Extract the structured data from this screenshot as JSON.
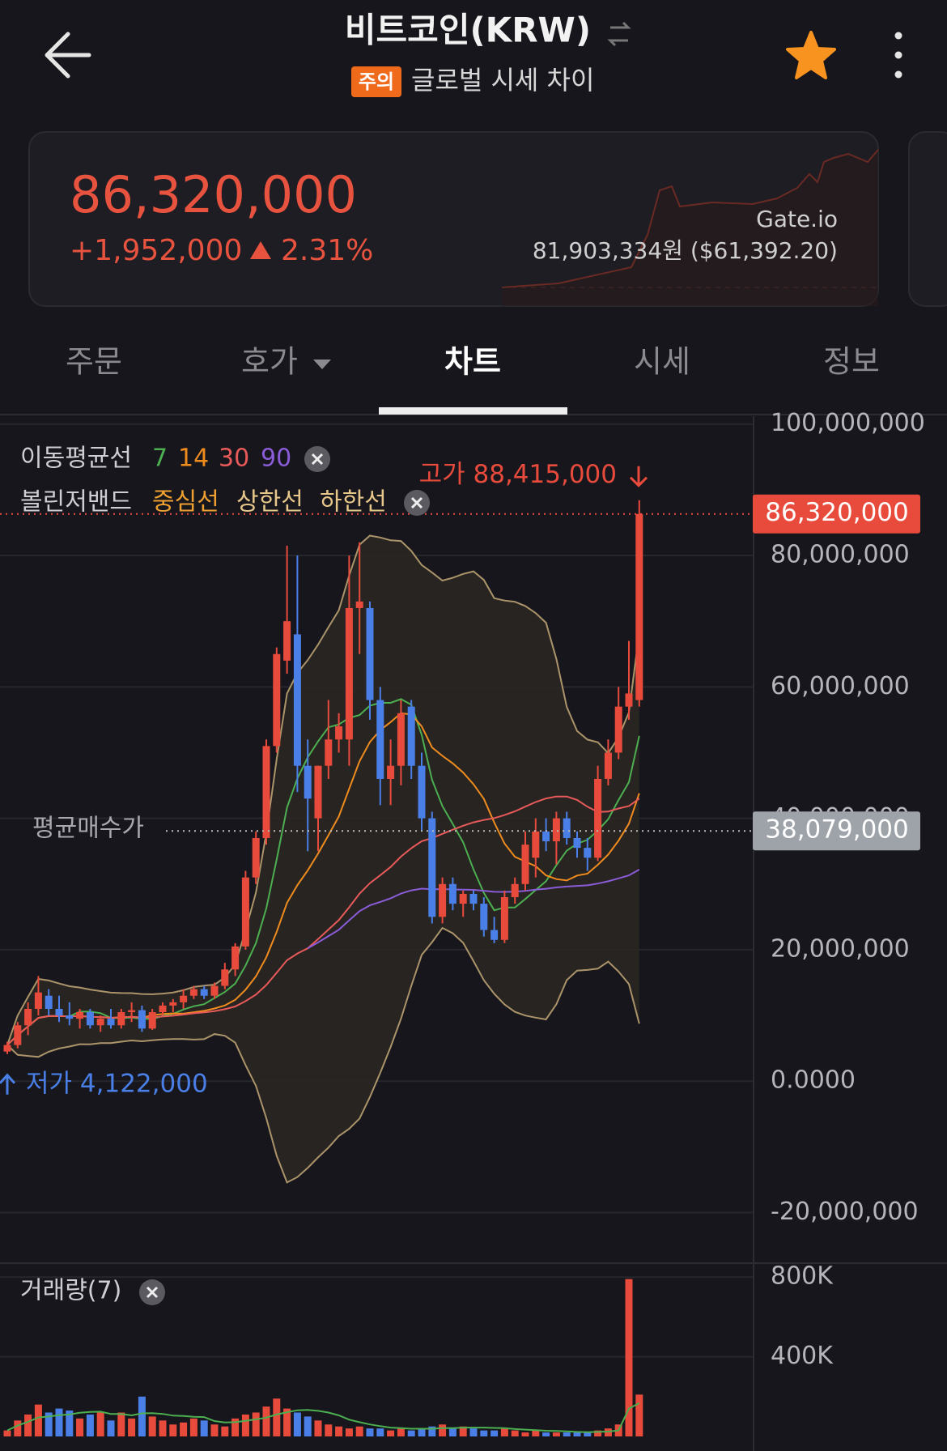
{
  "header": {
    "title": "비트코인(KRW)",
    "badge": "주의",
    "subtitle": "글로벌 시세 차이"
  },
  "price_card": {
    "price": "86,320,000",
    "change": "+1,952,000",
    "change_rate": "2.31%",
    "exchange": "Gate.io",
    "global_price": "81,903,334원 ($61,392.20)"
  },
  "tabs": [
    "주문",
    "호가",
    "차트",
    "시세",
    "정보"
  ],
  "chart_data": {
    "type": "candlestick",
    "up_color": "#e84b3c",
    "down_color": "#4a7fe8",
    "ylim": [
      -27700000,
      101200000
    ],
    "yticks": [
      {
        "value": -20000000,
        "label": "-20,000,000"
      },
      {
        "value": 0,
        "label": "0.0000"
      },
      {
        "value": 20000000,
        "label": "20,000,000"
      },
      {
        "value": 40000000,
        "label": "40,000,000"
      },
      {
        "value": 60000000,
        "label": "60,000,000"
      },
      {
        "value": 80000000,
        "label": "80,000,000"
      },
      {
        "value": 100000000,
        "label": "100,000,000"
      }
    ],
    "open": [
      4500000,
      5500000,
      8500000,
      11000000,
      13000000,
      11000000,
      10000000,
      9500000,
      10500000,
      8500000,
      9500000,
      8500000,
      10500000,
      10800000,
      8000000,
      10500000,
      11500000,
      12000000,
      13000000,
      14000000,
      13000000,
      14500000,
      17000000,
      20500000,
      31000000,
      37000000,
      51000000,
      64000000,
      68000000,
      48000000,
      40000000,
      48000000,
      52000000,
      52000000,
      72000000,
      72000000,
      58000000,
      46000000,
      48000000,
      57000000,
      48000000,
      40000000,
      25000000,
      30000000,
      27000000,
      28500000,
      27000000,
      23000000,
      21500000,
      28000000,
      30000000,
      34000000,
      38000000,
      36500000,
      40000000,
      37000000,
      35500000,
      34000000,
      46000000,
      50000000,
      57000000,
      58000000
    ],
    "high": [
      6000000,
      9000000,
      12000000,
      16000000,
      14000000,
      13000000,
      12000000,
      11000000,
      11000000,
      10000000,
      11000000,
      11000000,
      12000000,
      11500000,
      11000000,
      12000000,
      12500000,
      14000000,
      14500000,
      14500000,
      15000000,
      18000000,
      21000000,
      32000000,
      38000000,
      52000000,
      66000000,
      81500000,
      80000000,
      52000000,
      48000000,
      58000000,
      56000000,
      80000000,
      82000000,
      73000000,
      60000000,
      52000000,
      58000000,
      58000000,
      50000000,
      41000000,
      31000000,
      31000000,
      29000000,
      29000000,
      28000000,
      25000000,
      29000000,
      31000000,
      38000000,
      40000000,
      40000000,
      41000000,
      41000000,
      38000000,
      37000000,
      48000000,
      52000000,
      60000000,
      67000000,
      88415000
    ],
    "low": [
      4122000,
      5000000,
      7000000,
      10000000,
      10000000,
      9000000,
      8500000,
      8000000,
      8000000,
      7500000,
      8000000,
      8000000,
      9000000,
      7500000,
      7800000,
      10000000,
      10500000,
      11000000,
      12500000,
      12500000,
      12500000,
      14000000,
      16000000,
      20000000,
      30000000,
      36000000,
      50000000,
      62000000,
      44000000,
      35000000,
      35000000,
      46000000,
      50000000,
      48000000,
      65000000,
      55000000,
      42000000,
      42000000,
      45000000,
      46000000,
      38000000,
      24000000,
      24000000,
      26000000,
      25000000,
      26000000,
      22000000,
      21000000,
      21000000,
      27000000,
      29000000,
      31000000,
      35000000,
      33000000,
      36000000,
      34000000,
      32000000,
      33500000,
      45000000,
      49000000,
      55000000,
      57000000
    ],
    "close": [
      5500000,
      8500000,
      11000000,
      13500000,
      11000000,
      10000000,
      9500000,
      10500000,
      8500000,
      9500000,
      8500000,
      10500000,
      10800000,
      8000000,
      10500000,
      11500000,
      12000000,
      13000000,
      14000000,
      13000000,
      14500000,
      17000000,
      20500000,
      31000000,
      37000000,
      51000000,
      65000000,
      70000000,
      48000000,
      43000000,
      48000000,
      52000000,
      54000000,
      72000000,
      73000000,
      58000000,
      46000000,
      48000000,
      56000000,
      48000000,
      40000000,
      25000000,
      30000000,
      27000000,
      28500000,
      27000000,
      23000000,
      21500000,
      28000000,
      30000000,
      36000000,
      38000000,
      36500000,
      40000000,
      37000000,
      35500000,
      34000000,
      46000000,
      50000000,
      57000000,
      59000000,
      86320000
    ],
    "indicators": {
      "ma_label": "이동평균선",
      "ma_periods": [
        7,
        14,
        30,
        90
      ],
      "ma_colors": [
        "#4caf50",
        "#f08c1e",
        "#e85a5a",
        "#8a5cd8"
      ],
      "bollinger_label": "볼린저밴드",
      "bollinger_items": [
        "중심선",
        "상한선",
        "하한선"
      ],
      "bollinger_colors": [
        "#f0a030",
        "#e8c88a",
        "#e8c88a"
      ]
    },
    "high_label": "고가 88,415,000",
    "low_label": "저가 4,122,000",
    "current_price": {
      "value": 86320000,
      "label": "86,320,000"
    },
    "average_price": {
      "name": "평균매수가",
      "value": 38079000,
      "label": "38,079,000"
    },
    "volume": {
      "title": "거래량(7)",
      "ylim": [
        0,
        870000
      ],
      "yticks": [
        {
          "value": 400000,
          "label": "400K"
        },
        {
          "value": 800000,
          "label": "800K"
        }
      ],
      "values": [
        30000,
        80000,
        110000,
        160000,
        120000,
        140000,
        130000,
        90000,
        110000,
        120000,
        80000,
        120000,
        90000,
        200000,
        100000,
        80000,
        60000,
        70000,
        90000,
        80000,
        60000,
        50000,
        90000,
        110000,
        120000,
        150000,
        190000,
        140000,
        120000,
        100000,
        80000,
        60000,
        50000,
        40000,
        50000,
        40000,
        40000,
        30000,
        40000,
        30000,
        40000,
        50000,
        60000,
        40000,
        50000,
        40000,
        30000,
        30000,
        40000,
        30000,
        20000,
        30000,
        20000,
        20000,
        20000,
        20000,
        20000,
        30000,
        40000,
        60000,
        790000,
        210000
      ]
    }
  }
}
